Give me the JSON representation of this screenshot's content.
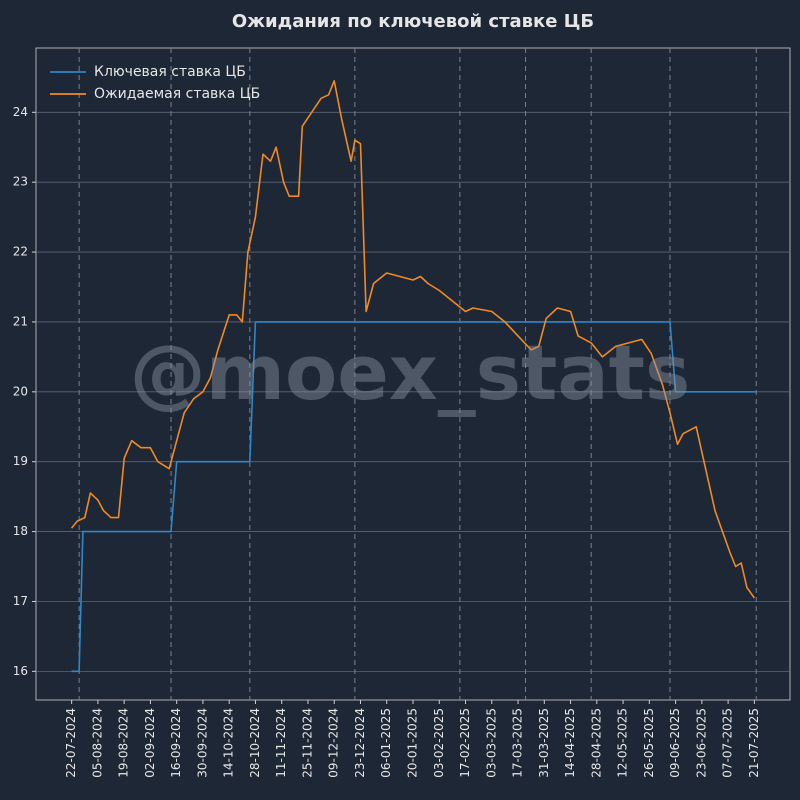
{
  "chart_data": {
    "type": "line",
    "title": "Ожидания по ключевой ставке ЦБ",
    "watermark": "@moex_stats",
    "legend": "upper left",
    "grid": true,
    "xlim": [
      "2024-07-03",
      "2025-08-09"
    ],
    "ylim": [
      15.59,
      24.92
    ],
    "yticks": [
      16,
      17,
      18,
      19,
      20,
      21,
      22,
      23,
      24
    ],
    "xticks": [
      {
        "value": "2024-07-22",
        "label": "22-07-2024"
      },
      {
        "value": "2024-08-05",
        "label": "05-08-2024"
      },
      {
        "value": "2024-08-19",
        "label": "19-08-2024"
      },
      {
        "value": "2024-09-02",
        "label": "02-09-2024"
      },
      {
        "value": "2024-09-16",
        "label": "16-09-2024"
      },
      {
        "value": "2024-09-30",
        "label": "30-09-2024"
      },
      {
        "value": "2024-10-14",
        "label": "14-10-2024"
      },
      {
        "value": "2024-10-28",
        "label": "28-10-2024"
      },
      {
        "value": "2024-11-11",
        "label": "11-11-2024"
      },
      {
        "value": "2024-11-25",
        "label": "25-11-2024"
      },
      {
        "value": "2024-12-09",
        "label": "09-12-2024"
      },
      {
        "value": "2024-12-23",
        "label": "23-12-2024"
      },
      {
        "value": "2025-01-06",
        "label": "06-01-2025"
      },
      {
        "value": "2025-01-20",
        "label": "20-01-2025"
      },
      {
        "value": "2025-02-03",
        "label": "03-02-2025"
      },
      {
        "value": "2025-02-17",
        "label": "17-02-2025"
      },
      {
        "value": "2025-03-03",
        "label": "03-03-2025"
      },
      {
        "value": "2025-03-17",
        "label": "17-03-2025"
      },
      {
        "value": "2025-03-31",
        "label": "31-03-2025"
      },
      {
        "value": "2025-04-14",
        "label": "14-04-2025"
      },
      {
        "value": "2025-04-28",
        "label": "28-04-2025"
      },
      {
        "value": "2025-05-12",
        "label": "12-05-2025"
      },
      {
        "value": "2025-05-26",
        "label": "26-05-2025"
      },
      {
        "value": "2025-06-09",
        "label": "09-06-2025"
      },
      {
        "value": "2025-06-23",
        "label": "23-06-2025"
      },
      {
        "value": "2025-07-07",
        "label": "07-07-2025"
      },
      {
        "value": "2025-07-21",
        "label": "21-07-2025"
      }
    ],
    "vlines": [
      "2024-07-26",
      "2024-09-13",
      "2024-10-25",
      "2024-12-20",
      "2025-02-14",
      "2025-03-21",
      "2025-04-25",
      "2025-06-06",
      "2025-07-22"
    ],
    "series": [
      {
        "name": "Ключевая ставка ЦБ",
        "color": "#2f86c8",
        "x": [
          "2024-07-22",
          "2024-07-26",
          "2024-07-28",
          "2024-09-13",
          "2024-09-16",
          "2024-10-25",
          "2024-10-28",
          "2025-06-06",
          "2025-06-09",
          "2025-07-22"
        ],
        "values": [
          16,
          16,
          18,
          18,
          19,
          19,
          21,
          21,
          20,
          20
        ]
      },
      {
        "name": "Ожидаемая ставка ЦБ",
        "color": "#f08a24",
        "x": [
          "2024-07-22",
          "2024-07-25",
          "2024-07-29",
          "2024-08-01",
          "2024-08-05",
          "2024-08-08",
          "2024-08-12",
          "2024-08-16",
          "2024-08-19",
          "2024-08-23",
          "2024-08-28",
          "2024-09-02",
          "2024-09-06",
          "2024-09-12",
          "2024-09-16",
          "2024-09-20",
          "2024-09-25",
          "2024-09-30",
          "2024-10-04",
          "2024-10-08",
          "2024-10-14",
          "2024-10-18",
          "2024-10-21",
          "2024-10-24",
          "2024-10-28",
          "2024-11-01",
          "2024-11-05",
          "2024-11-08",
          "2024-11-12",
          "2024-11-15",
          "2024-11-20",
          "2024-11-22",
          "2024-11-27",
          "2024-12-02",
          "2024-12-06",
          "2024-12-09",
          "2024-12-13",
          "2024-12-18",
          "2024-12-20",
          "2024-12-23",
          "2024-12-26",
          "2024-12-30",
          "2025-01-06",
          "2025-01-13",
          "2025-01-20",
          "2025-01-24",
          "2025-01-28",
          "2025-02-03",
          "2025-02-10",
          "2025-02-17",
          "2025-02-21",
          "2025-03-03",
          "2025-03-10",
          "2025-03-17",
          "2025-03-24",
          "2025-03-28",
          "2025-04-01",
          "2025-04-07",
          "2025-04-14",
          "2025-04-18",
          "2025-04-25",
          "2025-05-01",
          "2025-05-08",
          "2025-05-15",
          "2025-05-22",
          "2025-05-27",
          "2025-06-02",
          "2025-06-06",
          "2025-06-10",
          "2025-06-13",
          "2025-06-20",
          "2025-06-25",
          "2025-06-30",
          "2025-07-04",
          "2025-07-08",
          "2025-07-11",
          "2025-07-14",
          "2025-07-17",
          "2025-07-21"
        ],
        "values": [
          18.05,
          18.15,
          18.2,
          18.55,
          18.45,
          18.3,
          18.2,
          18.2,
          19.05,
          19.3,
          19.2,
          19.2,
          19.0,
          18.9,
          19.3,
          19.7,
          19.9,
          20.0,
          20.2,
          20.6,
          21.1,
          21.1,
          21.0,
          22.0,
          22.5,
          23.4,
          23.3,
          23.5,
          23.0,
          22.8,
          22.8,
          23.8,
          24.0,
          24.2,
          24.25,
          24.45,
          23.9,
          23.3,
          23.6,
          23.55,
          21.15,
          21.55,
          21.7,
          21.65,
          21.6,
          21.65,
          21.55,
          21.45,
          21.3,
          21.15,
          21.2,
          21.15,
          21.0,
          20.8,
          20.6,
          20.65,
          21.05,
          21.2,
          21.15,
          20.8,
          20.7,
          20.5,
          20.65,
          20.7,
          20.75,
          20.55,
          20.1,
          19.7,
          19.25,
          19.4,
          19.5,
          18.9,
          18.3,
          18.0,
          17.7,
          17.5,
          17.55,
          17.2,
          17.05
        ]
      }
    ]
  }
}
